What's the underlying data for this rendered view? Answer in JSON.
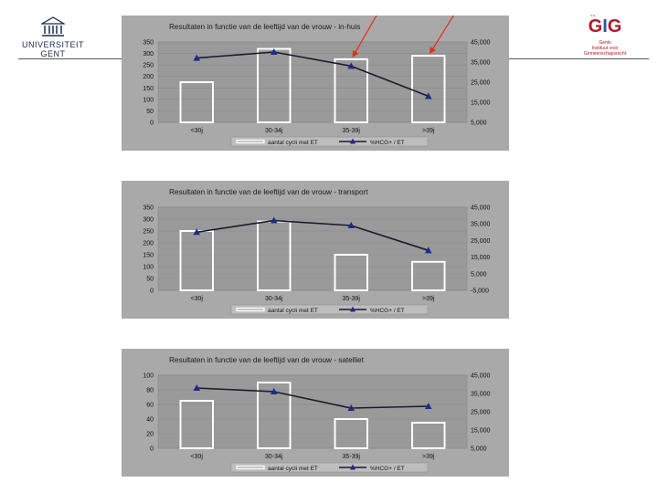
{
  "header": {
    "university_line1": "UNIVERSITEIT",
    "university_line2": "GENT",
    "gig_version": "v.u.",
    "gig_mark_left": "G",
    "gig_mark_mid": "I",
    "gig_mark_right": "G",
    "gig_sub1": "Gents",
    "gig_sub2": "Instituut voor",
    "gig_sub3": "Gemeenschapsrecht"
  },
  "colors": {
    "background": "#a9a9a9",
    "plot_area": "#9a9a9a",
    "bar_outline": "#ffffff",
    "line": "#1a1a2e",
    "marker": "#1f2a8a",
    "arrow": "#e03010"
  },
  "chart_data": [
    {
      "type": "bar",
      "title": "Resultaten in functie van de leeftijd van de vrouw - in-huis",
      "categories": [
        "<30j",
        "30-34j",
        "35-39j",
        ">39j"
      ],
      "series": [
        {
          "name": "aantal cycli met ET",
          "axis": "left",
          "values": [
            175,
            320,
            275,
            290
          ]
        },
        {
          "name": "%HCG+ / ET",
          "axis": "right",
          "chart_type": "line",
          "values": [
            37000,
            40000,
            33000,
            18000
          ]
        }
      ],
      "ylim": [
        0,
        350
      ],
      "yticks": [
        "0",
        "50",
        "100",
        "150",
        "200",
        "250",
        "300",
        "350"
      ],
      "y2lim": [
        5000,
        45000
      ],
      "y2ticks": [
        "5,000",
        "15,000",
        "25,000",
        "35,000",
        "45,000"
      ],
      "legend": "bottom",
      "annotation_arrows": 2
    },
    {
      "type": "bar",
      "title": "Resultaten in functie van de leeftijd van de vrouw - transport",
      "categories": [
        "<30j",
        "30-34j",
        "35-39j",
        ">39j"
      ],
      "series": [
        {
          "name": "aantal cycli met ET",
          "axis": "left",
          "values": [
            250,
            290,
            150,
            120
          ]
        },
        {
          "name": "%HCG+ / ET",
          "axis": "right",
          "chart_type": "line",
          "values": [
            30000,
            37000,
            34000,
            19000
          ]
        }
      ],
      "ylim": [
        0,
        350
      ],
      "yticks": [
        "0",
        "50",
        "100",
        "150",
        "200",
        "250",
        "300",
        "350"
      ],
      "y2lim": [
        -5000,
        45000
      ],
      "y2ticks": [
        "-5,000",
        "5,000",
        "15,000",
        "25,000",
        "35,000",
        "45,000"
      ],
      "legend": "bottom"
    },
    {
      "type": "bar",
      "title": "Resultaten in functie van de leeftijd van de vrouw - satelliet",
      "categories": [
        "<30j",
        "30-34j",
        "35-39j",
        ">39j"
      ],
      "series": [
        {
          "name": "aantal cycli met ET",
          "axis": "left",
          "values": [
            65,
            90,
            40,
            35
          ]
        },
        {
          "name": "%HCG+ / ET",
          "axis": "right",
          "chart_type": "line",
          "values": [
            38000,
            36000,
            27000,
            28000
          ]
        }
      ],
      "ylim": [
        0,
        100
      ],
      "yticks": [
        "0",
        "20",
        "40",
        "60",
        "80",
        "100"
      ],
      "y2lim": [
        5000,
        45000
      ],
      "y2ticks": [
        "5,000",
        "15,000",
        "25,000",
        "35,000",
        "45,000"
      ],
      "legend": "bottom"
    }
  ]
}
